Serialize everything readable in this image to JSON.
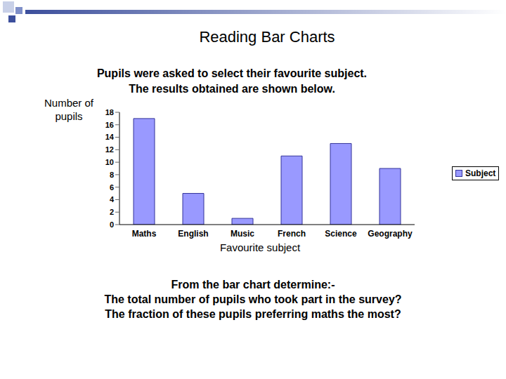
{
  "chart_data": {
    "type": "bar",
    "title": "Reading Bar Charts",
    "subtitle": [
      "Pupils were asked to select their favourite subject.",
      "The results obtained are shown below."
    ],
    "y_label": "Number of pupils",
    "x_label": "Favourite subject",
    "categories": [
      "Maths",
      "English",
      "Music",
      "French",
      "Science",
      "Geography"
    ],
    "series": [
      {
        "name": "Subject",
        "color": "#9999ff",
        "values": [
          17,
          5,
          1,
          11,
          13,
          9
        ]
      }
    ],
    "ylim": [
      0,
      18
    ],
    "yticks": [
      0,
      2,
      4,
      6,
      8,
      10,
      12,
      14,
      16,
      18
    ],
    "grid": false,
    "legend": "right",
    "annotations": [
      "From the bar chart determine:-",
      "The total number of pupils who took part in the survey?",
      "The fraction of these pupils preferring maths the most?"
    ]
  }
}
